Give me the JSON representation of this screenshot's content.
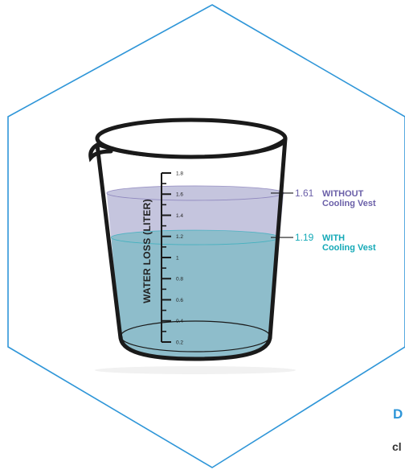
{
  "chart_data": {
    "type": "bar",
    "ylabel": "WATER LOSS (LITER)",
    "ylim": [
      0.2,
      1.8
    ],
    "yticks": [
      0.2,
      0.4,
      0.6,
      0.8,
      1,
      1.2,
      1.4,
      1.6,
      1.8
    ],
    "yticklabels": [
      "0.2",
      "0.4",
      "0.6",
      "0.8",
      "1",
      "1.2",
      "1.4",
      "1.6",
      "1.8"
    ],
    "series": [
      {
        "value": 1.61,
        "value_label": "1.61",
        "label_line1": "WITHOUT",
        "label_line2": "Cooling Vest",
        "color": "#6a5fa8",
        "fill": "#c2c2dc"
      },
      {
        "value": 1.19,
        "value_label": "1.19",
        "label_line1": "WITH",
        "label_line2": "Cooling Vest",
        "color": "#14a9b7",
        "fill": "#8bbdc9"
      }
    ]
  },
  "page": {
    "frame_color": "#2f96d8",
    "cut_heading": "D",
    "cut_subtext": "cl"
  }
}
